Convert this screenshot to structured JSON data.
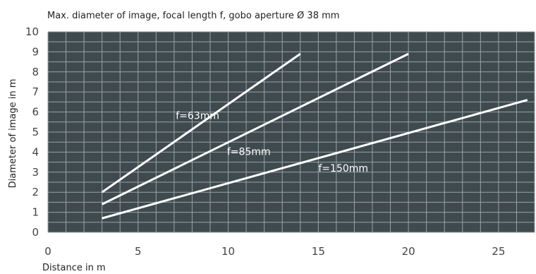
{
  "chart_data": {
    "type": "line",
    "title": "Max. diameter of image, focal length f, gobo aperture Ø 38 mm",
    "xlabel": "Distance in m",
    "ylabel": "Diameter of image in m",
    "xlim": [
      0,
      27
    ],
    "ylim": [
      0,
      10
    ],
    "x_ticks": [
      0,
      5,
      10,
      15,
      20,
      25
    ],
    "y_ticks": [
      0,
      1,
      2,
      3,
      4,
      5,
      6,
      7,
      8,
      9,
      10
    ],
    "grid": true,
    "legend": "none",
    "colors": {
      "plot_background": "#3f4a4f",
      "grid": "#9aa3a6",
      "series_line": "#ffffff",
      "text": "#333333"
    },
    "series": [
      {
        "name": "f=63mm",
        "x": [
          3,
          14
        ],
        "y": [
          2.0,
          8.9
        ]
      },
      {
        "name": "f=85mm",
        "x": [
          3,
          20
        ],
        "y": [
          1.4,
          8.9
        ]
      },
      {
        "name": "f=150mm",
        "x": [
          3,
          26.6
        ],
        "y": [
          0.7,
          6.6
        ]
      }
    ]
  }
}
